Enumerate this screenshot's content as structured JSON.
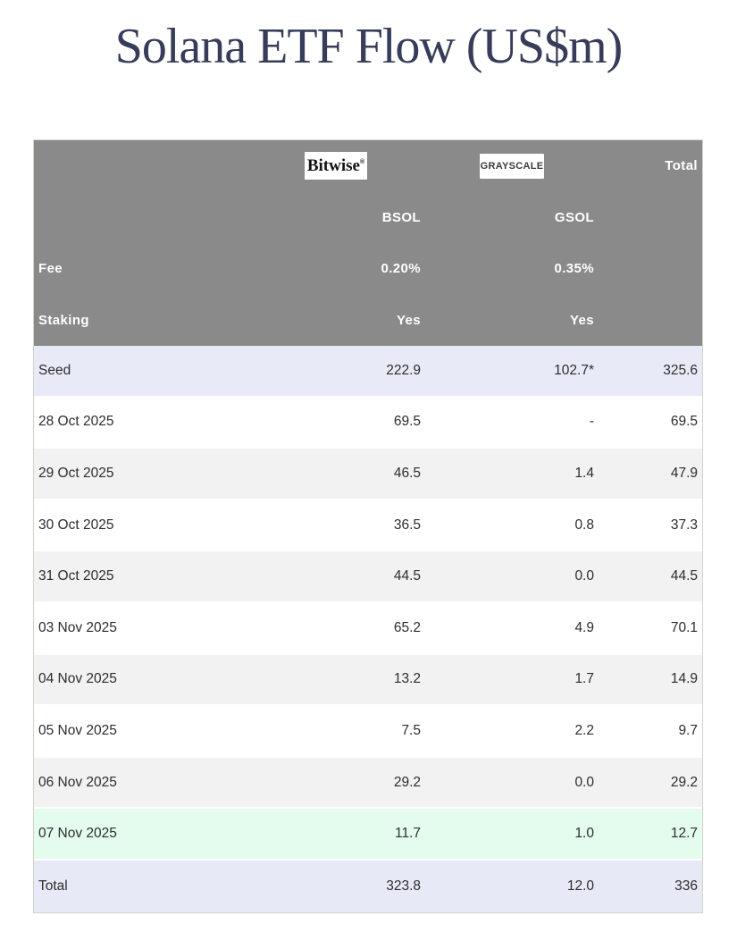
{
  "title": "Solana ETF Flow (US$m)",
  "colors": {
    "title-color": "#363c59",
    "header-bg": "#8a8a8a",
    "header-text": "#ffffff",
    "row-text": "#2d2d2d",
    "seed-row-bg": "#e8ebf7",
    "white-row-bg": "#ffffff",
    "alt-row-bg": "#f2f2f2",
    "latest-row-bg": "#e4fcee",
    "total-row-bg": "#e7eaf6",
    "logo-box-bg": "#ffffff",
    "bitwise-logo-color": "#141414",
    "grayscale-logo-color": "#3c3c3c",
    "table-border": "#d5d2ca"
  },
  "header": {
    "bitwise_logo": "Bitwise",
    "bitwise_mark": "®",
    "grayscale_logo": "GRAYSCALE",
    "total_label": "Total",
    "tickers": {
      "bsol": "BSOL",
      "gsol": "GSOL"
    },
    "fee": {
      "label": "Fee",
      "bsol": "0.20%",
      "gsol": "0.35%"
    },
    "staking": {
      "label": "Staking",
      "bsol": "Yes",
      "gsol": "Yes"
    }
  },
  "rows": [
    {
      "label": "Seed",
      "bsol": "222.9",
      "gsol": "102.7*",
      "total": "325.6",
      "variant": "seed"
    },
    {
      "label": "28 Oct 2025",
      "bsol": "69.5",
      "gsol": "-",
      "total": "69.5",
      "variant": "white"
    },
    {
      "label": "29 Oct 2025",
      "bsol": "46.5",
      "gsol": "1.4",
      "total": "47.9",
      "variant": "alt"
    },
    {
      "label": "30 Oct 2025",
      "bsol": "36.5",
      "gsol": "0.8",
      "total": "37.3",
      "variant": "white"
    },
    {
      "label": "31 Oct 2025",
      "bsol": "44.5",
      "gsol": "0.0",
      "total": "44.5",
      "variant": "alt"
    },
    {
      "label": "03 Nov 2025",
      "bsol": "65.2",
      "gsol": "4.9",
      "total": "70.1",
      "variant": "white"
    },
    {
      "label": "04 Nov 2025",
      "bsol": "13.2",
      "gsol": "1.7",
      "total": "14.9",
      "variant": "alt"
    },
    {
      "label": "05 Nov 2025",
      "bsol": "7.5",
      "gsol": "2.2",
      "total": "9.7",
      "variant": "white"
    },
    {
      "label": "06 Nov 2025",
      "bsol": "29.2",
      "gsol": "0.0",
      "total": "29.2",
      "variant": "alt"
    },
    {
      "label": "07 Nov 2025",
      "bsol": "11.7",
      "gsol": "1.0",
      "total": "12.7",
      "variant": "latest"
    },
    {
      "label": "Total",
      "bsol": "323.8",
      "gsol": "12.0",
      "total": "336",
      "variant": "total"
    }
  ],
  "chart_data": {
    "type": "table",
    "title": "Solana ETF Flow (US$m)",
    "columns": [
      "",
      "BSOL",
      "GSOL",
      "Total"
    ],
    "providers": [
      {
        "name": "Bitwise",
        "ticker": "BSOL",
        "fee": "0.20%",
        "staking": "Yes"
      },
      {
        "name": "Grayscale",
        "ticker": "GSOL",
        "fee": "0.35%",
        "staking": "Yes"
      }
    ],
    "rows": [
      [
        "Seed",
        222.9,
        "102.7*",
        325.6
      ],
      [
        "28 Oct 2025",
        69.5,
        "-",
        69.5
      ],
      [
        "29 Oct 2025",
        46.5,
        1.4,
        47.9
      ],
      [
        "30 Oct 2025",
        36.5,
        0.8,
        37.3
      ],
      [
        "31 Oct 2025",
        44.5,
        0.0,
        44.5
      ],
      [
        "03 Nov 2025",
        65.2,
        4.9,
        70.1
      ],
      [
        "04 Nov 2025",
        13.2,
        1.7,
        14.9
      ],
      [
        "05 Nov 2025",
        7.5,
        2.2,
        9.7
      ],
      [
        "06 Nov 2025",
        29.2,
        0.0,
        29.2
      ],
      [
        "07 Nov 2025",
        11.7,
        1.0,
        12.7
      ],
      [
        "Total",
        323.8,
        12.0,
        336
      ]
    ]
  }
}
